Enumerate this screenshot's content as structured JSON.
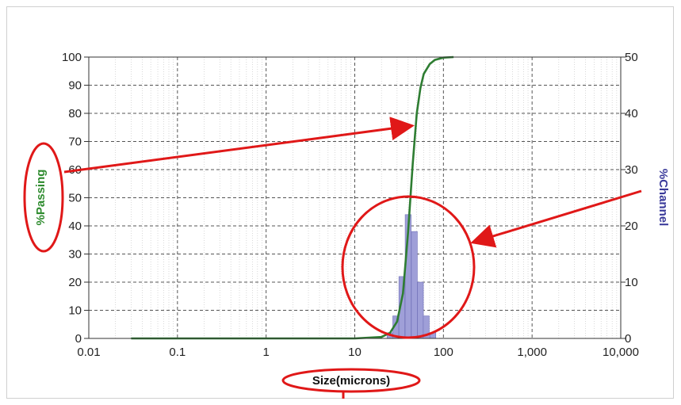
{
  "chart_data": {
    "type": "bar+line",
    "title": "",
    "xlabel": "Size(microns)",
    "ylabel_left": "%Passing",
    "ylabel_right": "%Channel",
    "x_scale": "log",
    "xlim": [
      0.01,
      10000
    ],
    "ylim_left": [
      0,
      100
    ],
    "ylim_right": [
      0,
      50
    ],
    "grid": true,
    "x_ticks": [
      0.01,
      0.1,
      1,
      10,
      100,
      1000,
      10000
    ],
    "x_tick_labels": [
      "0.01",
      "0.1",
      "1",
      "10",
      "100",
      "1,000",
      "10,000"
    ],
    "y_left_ticks": [
      0,
      10,
      20,
      30,
      40,
      50,
      60,
      70,
      80,
      90,
      100
    ],
    "y_right_ticks": [
      0,
      10,
      20,
      30,
      40,
      50
    ],
    "series": [
      {
        "axis": "left",
        "kind": "line",
        "color": "#2e7d32",
        "x": [
          0.03,
          1,
          10,
          20,
          25,
          30,
          35,
          40,
          45,
          50,
          55,
          60,
          70,
          80,
          100,
          130
        ],
        "y": [
          0,
          0,
          0,
          0.5,
          2,
          6,
          16,
          38,
          62,
          80,
          89,
          94,
          97.5,
          99,
          99.8,
          100
        ]
      },
      {
        "axis": "right",
        "kind": "bar",
        "color": "#9f9fd8",
        "x": [
          25,
          29,
          34,
          40,
          47,
          55,
          64,
          76
        ],
        "y": [
          1,
          4,
          11,
          22,
          19,
          10,
          4,
          1
        ]
      }
    ],
    "annotations": [
      {
        "type": "arrow",
        "from": "%Passing label",
        "to": "%Passing curve"
      },
      {
        "type": "arrow",
        "from": "%Channel label",
        "to": "%Channel bars"
      }
    ]
  },
  "colors": {
    "passing_label": "#2e8b2e",
    "channel_label": "#3a3a9a",
    "annotation": "#e01818",
    "grid": "#555555",
    "minor_grid": "#c0c0c0"
  }
}
